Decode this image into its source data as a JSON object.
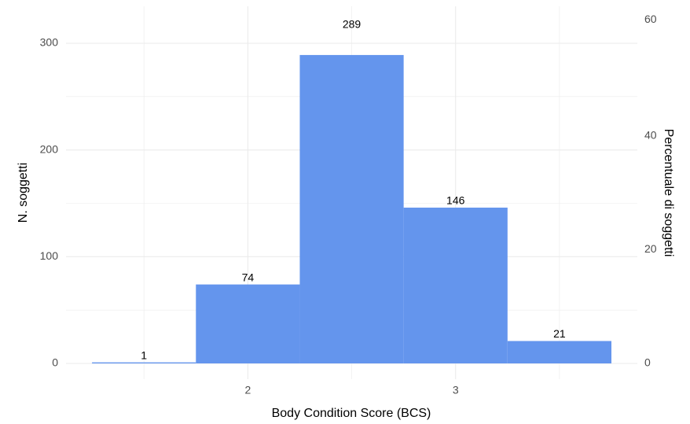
{
  "chart_data": {
    "type": "bar",
    "xlabel": "Body Condition Score (BCS)",
    "ylabel": "N. soggetti",
    "y2label": "Percentuale di soggetti",
    "bars": [
      {
        "x_start": 1.25,
        "x_end": 1.75,
        "value": 1,
        "label": "1"
      },
      {
        "x_start": 1.75,
        "x_end": 2.25,
        "value": 74,
        "label": "74"
      },
      {
        "x_start": 2.25,
        "x_end": 2.75,
        "value": 289,
        "label": "289"
      },
      {
        "x_start": 2.75,
        "x_end": 3.25,
        "value": 146,
        "label": "146"
      },
      {
        "x_start": 3.25,
        "x_end": 3.75,
        "value": 21,
        "label": "21"
      }
    ],
    "xlim": [
      1.0,
      3.75
    ],
    "ylim": [
      0,
      325
    ],
    "y2lim": [
      0,
      61.04
    ],
    "xticks": [
      {
        "value": 2,
        "label": "2"
      },
      {
        "value": 3,
        "label": "3"
      }
    ],
    "xgrid_minor": [
      1.5,
      2.5,
      3.5
    ],
    "yticks": [
      {
        "value": 0,
        "label": "0"
      },
      {
        "value": 100,
        "label": "100"
      },
      {
        "value": 200,
        "label": "200"
      },
      {
        "value": 300,
        "label": "300"
      }
    ],
    "ygrid_minor": [
      50,
      150,
      250
    ],
    "y2ticks": [
      {
        "value": 0,
        "label": "0"
      },
      {
        "value": 20,
        "label": "20"
      },
      {
        "value": 40,
        "label": "40"
      },
      {
        "value": 60,
        "label": "60"
      }
    ],
    "bar_color": "#6495ED",
    "grid": true,
    "grid_color": "#ebebeb"
  }
}
